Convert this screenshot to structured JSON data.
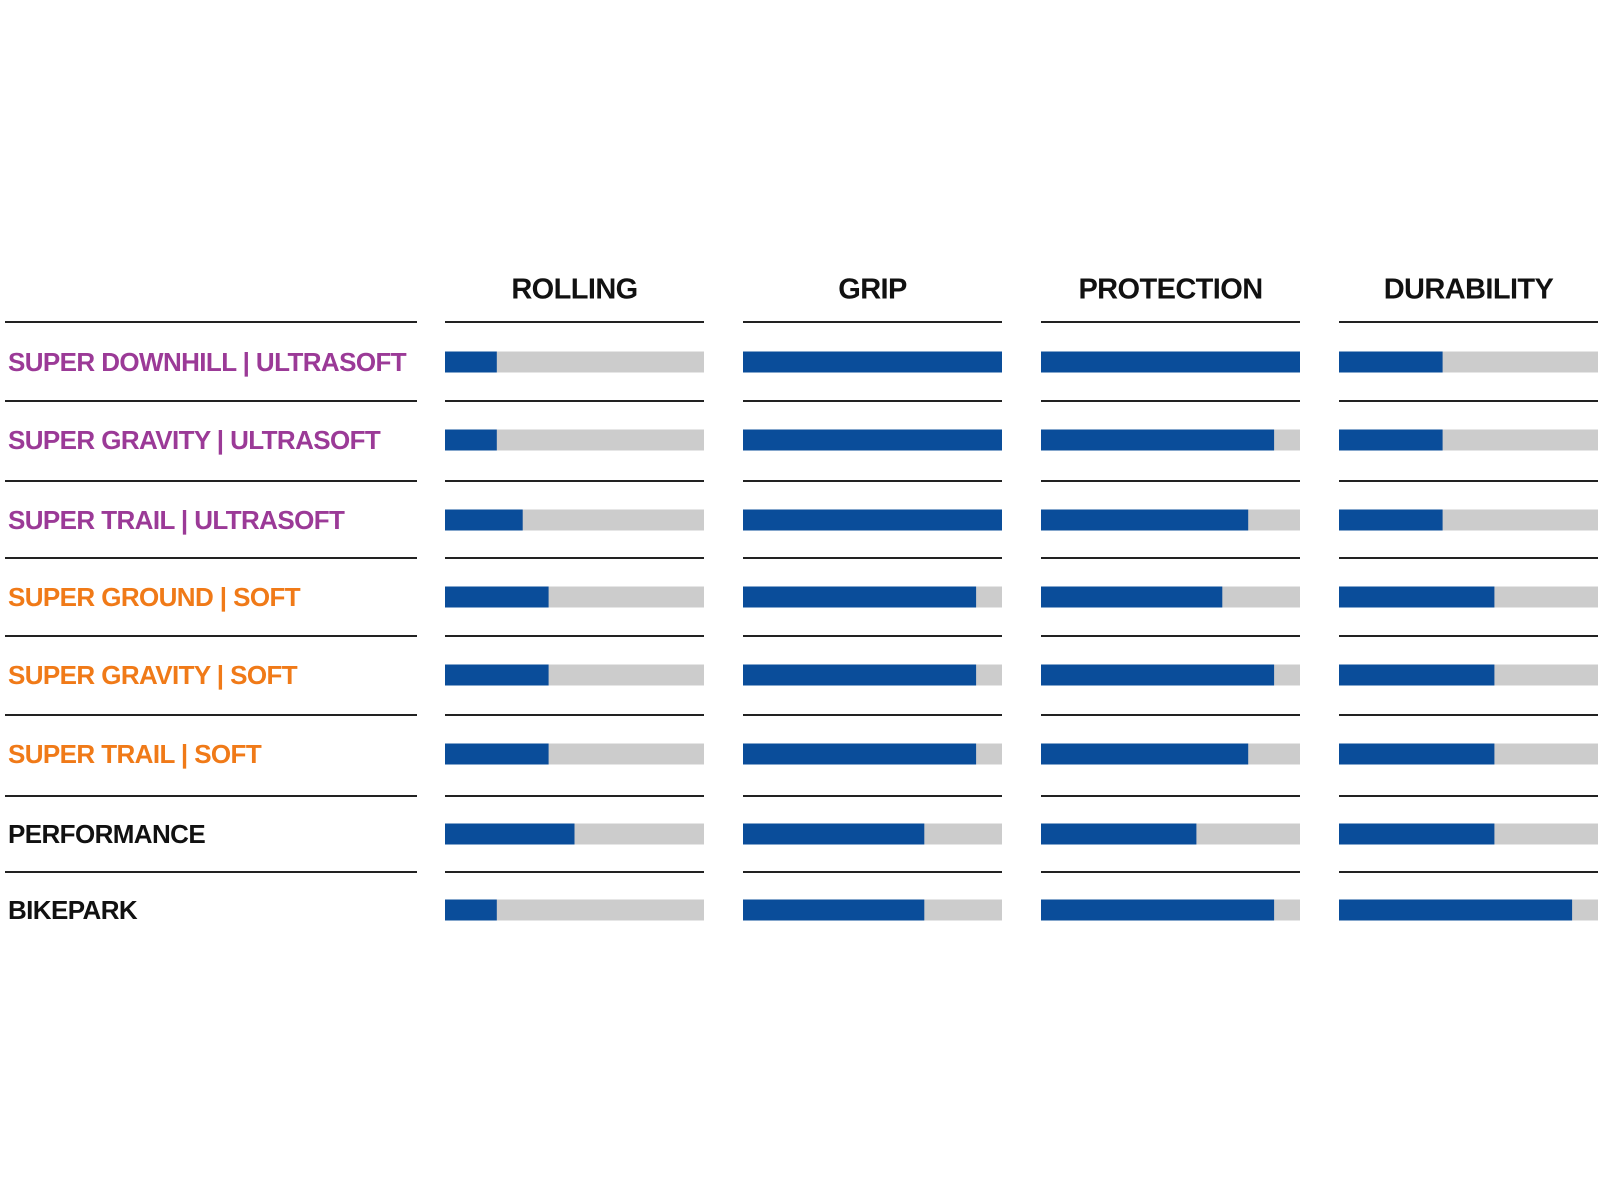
{
  "chart_data": {
    "type": "bar",
    "categories": [
      "SUPER DOWNHILL | ULTRASOFT",
      "SUPER GRAVITY | ULTRASOFT",
      "SUPER TRAIL | ULTRASOFT",
      "SUPER GROUND | SOFT",
      "SUPER GRAVITY | SOFT",
      "SUPER TRAIL | SOFT",
      "PERFORMANCE",
      "BIKEPARK"
    ],
    "category_colors": [
      "#9b3a97",
      "#9b3a97",
      "#9b3a97",
      "#f07a18",
      "#f07a18",
      "#f07a18",
      "#111111",
      "#111111"
    ],
    "series": [
      {
        "name": "ROLLING",
        "color": "#0a4d9a",
        "values": [
          2,
          2,
          3,
          4,
          4,
          4,
          5,
          2
        ]
      },
      {
        "name": "GRIP",
        "color": "#0a4d9a",
        "values": [
          10,
          10,
          10,
          9,
          9,
          9,
          7,
          7
        ]
      },
      {
        "name": "PROTECTION",
        "color": "#0a4d9a",
        "values": [
          10,
          9,
          8,
          7,
          9,
          8,
          6,
          9
        ]
      },
      {
        "name": "DURABILITY",
        "color": "#0a4d9a",
        "values": [
          4,
          4,
          4,
          6,
          6,
          6,
          6,
          9
        ]
      }
    ],
    "xlim": [
      0,
      10
    ],
    "track_color": "#cccccc"
  }
}
